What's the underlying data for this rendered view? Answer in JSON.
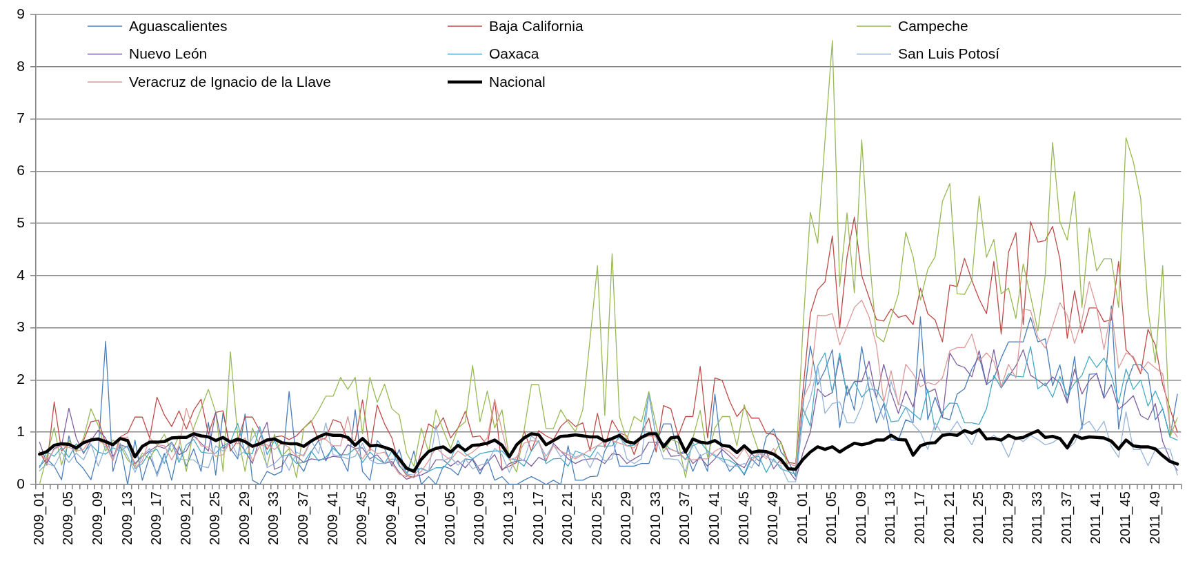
{
  "chart_data": {
    "type": "line",
    "grid": "y",
    "legend": "top",
    "marker": "none",
    "ylim": [
      0,
      9
    ],
    "yticks": [
      0,
      1,
      2,
      3,
      4,
      5,
      6,
      7,
      8,
      9
    ],
    "categories": [
      "2009_01",
      null,
      null,
      null,
      "2009_05",
      null,
      null,
      null,
      "2009_09",
      null,
      null,
      null,
      "2009_13",
      null,
      null,
      null,
      "2009_17",
      null,
      null,
      null,
      "2009_21",
      null,
      null,
      null,
      "2009_25",
      null,
      null,
      null,
      "2009_29",
      null,
      null,
      null,
      "2009_33",
      null,
      null,
      null,
      "2009_37",
      null,
      null,
      null,
      "2009_41",
      null,
      null,
      null,
      "2009_45",
      null,
      null,
      null,
      "2009_49",
      null,
      null,
      null,
      "2010_01",
      null,
      null,
      null,
      "2010_05",
      null,
      null,
      null,
      "2010_09",
      null,
      null,
      null,
      "2010_13",
      null,
      null,
      null,
      "2010_17",
      null,
      null,
      null,
      "2010_21",
      null,
      null,
      null,
      "2010_25",
      null,
      null,
      null,
      "2010_29",
      null,
      null,
      null,
      "2010_33",
      null,
      null,
      null,
      "2010_37",
      null,
      null,
      null,
      "2010_41",
      null,
      null,
      null,
      "2010_45",
      null,
      null,
      null,
      "2010_49",
      null,
      null,
      null,
      "2011_01",
      null,
      null,
      null,
      "2011_05",
      null,
      null,
      null,
      "2011_09",
      null,
      null,
      null,
      "2011_13",
      null,
      null,
      null,
      "2011_17",
      null,
      null,
      null,
      "2011_21",
      null,
      null,
      null,
      "2011_25",
      null,
      null,
      null,
      "2011_29",
      null,
      null,
      null,
      "2011_33",
      null,
      null,
      null,
      "2011_37",
      null,
      null,
      null,
      "2011_41",
      null,
      null,
      null,
      "2011_45",
      null,
      null,
      null,
      "2011_49",
      null,
      null,
      null
    ],
    "series": [
      {
        "name": "Aguascalientes",
        "color": "#4a7ebb",
        "values": [
          0.35,
          0.49,
          0.35,
          0.09,
          0.93,
          0.45,
          0.3,
          0.09,
          0.64,
          2.74,
          0.25,
          0.74,
          0.0,
          0.85,
          0.08,
          0.54,
          0.2,
          0.59,
          0.08,
          0.74,
          0.35,
          0.68,
          0.25,
          1.19,
          0.18,
          1.38,
          0.69,
          0.49,
          1.35,
          0.08,
          0.0,
          0.25,
          0.18,
          0.25,
          1.78,
          0.45,
          0.25,
          0.62,
          0.84,
          0.45,
          0.74,
          0.54,
          0.25,
          1.43,
          0.25,
          0.08,
          0.84,
          0.69,
          0.35,
          0.67,
          0.18,
          0.64,
          0.0,
          0.15,
          0.0,
          0.35,
          0.3,
          0.18,
          0.49,
          0.47,
          0.2,
          0.49,
          0.08,
          0.15,
          0.0,
          0.0,
          0.08,
          0.15,
          0.08,
          0.0,
          0.08,
          0.0,
          0.74,
          0.08,
          0.08,
          0.15,
          0.16,
          0.64,
          0.89,
          0.35,
          0.35,
          0.35,
          0.4,
          0.4,
          0.78,
          1.16,
          1.16,
          0.59,
          0.64,
          0.25,
          0.57,
          0.25,
          1.73,
          0.54,
          0.25,
          0.4,
          0.18,
          0.49,
          0.35,
          0.91,
          1.06,
          0.62,
          0.45,
          0.15,
          1.52,
          2.65,
          1.91,
          2.19,
          2.58,
          1.09,
          1.89,
          1.42,
          2.64,
          1.85,
          1.18,
          1.55,
          0.85,
          0.85,
          1.24,
          1.18,
          3.21,
          1.24,
          1.67,
          1.28,
          1.24,
          1.73,
          1.83,
          2.21,
          2.45,
          1.91,
          2.03,
          2.42,
          2.73,
          2.73,
          2.73,
          3.2,
          2.73,
          2.79,
          1.89,
          2.29,
          1.58,
          2.45,
          1.06,
          2.11,
          2.12,
          1.67,
          3.42,
          1.06,
          1.91,
          2.29,
          2.29,
          2.12,
          1.24,
          1.45,
          0.91,
          1.73
        ]
      },
      {
        "name": "Baja California",
        "color": "#be4b48",
        "values": [
          0.63,
          0.37,
          1.58,
          0.64,
          0.78,
          0.65,
          0.84,
          1.2,
          1.23,
          0.79,
          0.47,
          0.91,
          0.99,
          1.29,
          1.29,
          0.89,
          1.67,
          1.33,
          1.11,
          1.41,
          1.06,
          1.42,
          1.63,
          0.96,
          1.38,
          1.41,
          0.64,
          0.84,
          1.29,
          1.29,
          1.03,
          0.67,
          0.91,
          0.93,
          0.86,
          0.93,
          1.08,
          1.22,
          0.84,
          0.89,
          1.24,
          1.19,
          0.84,
          0.84,
          1.62,
          0.64,
          1.52,
          1.16,
          0.89,
          0.37,
          0.18,
          0.13,
          0.64,
          1.16,
          1.06,
          1.28,
          0.89,
          1.08,
          1.4,
          0.91,
          0.93,
          0.74,
          1.62,
          0.29,
          0.35,
          0.42,
          1.03,
          0.64,
          1.03,
          0.93,
          0.86,
          1.11,
          1.24,
          1.11,
          1.18,
          0.64,
          1.36,
          0.71,
          1.23,
          0.99,
          0.93,
          0.57,
          0.98,
          1.27,
          0.62,
          1.51,
          1.45,
          0.93,
          1.3,
          1.3,
          2.26,
          0.89,
          2.04,
          1.99,
          1.6,
          1.3,
          1.47,
          1.27,
          1.27,
          0.98,
          0.96,
          0.81,
          0.42,
          0.4,
          1.8,
          3.27,
          3.73,
          3.88,
          4.76,
          3.0,
          4.36,
          5.12,
          4.0,
          3.58,
          3.16,
          3.13,
          3.36,
          3.2,
          3.24,
          3.06,
          3.76,
          3.27,
          3.15,
          2.73,
          3.82,
          3.79,
          4.33,
          3.91,
          3.55,
          3.27,
          4.27,
          2.88,
          4.45,
          4.82,
          3.06,
          5.03,
          4.64,
          4.67,
          4.94,
          4.32,
          2.8,
          3.71,
          2.9,
          3.38,
          3.38,
          3.12,
          3.15,
          4.27,
          2.58,
          2.42,
          2.12,
          2.97,
          2.67,
          1.91,
          1.45,
          1.0
        ]
      },
      {
        "name": "Campeche",
        "color": "#98b954",
        "values": [
          0.0,
          0.54,
          1.09,
          0.37,
          0.85,
          0.62,
          0.89,
          1.45,
          1.13,
          0.64,
          0.85,
          0.74,
          0.47,
          0.35,
          0.6,
          0.49,
          0.74,
          0.96,
          0.62,
          0.93,
          0.25,
          1.08,
          1.45,
          1.82,
          1.38,
          0.25,
          2.54,
          0.93,
          0.25,
          1.08,
          0.74,
          0.35,
          0.96,
          0.54,
          0.69,
          0.13,
          1.08,
          1.2,
          1.42,
          1.69,
          1.69,
          2.05,
          1.82,
          2.05,
          0.97,
          2.05,
          1.57,
          1.92,
          1.45,
          1.33,
          0.6,
          0.35,
          1.08,
          0.62,
          1.43,
          1.03,
          0.69,
          1.08,
          1.2,
          2.28,
          1.2,
          1.79,
          1.08,
          1.43,
          0.49,
          0.24,
          1.03,
          1.91,
          1.91,
          1.07,
          1.07,
          1.43,
          1.2,
          1.01,
          1.43,
          2.79,
          4.19,
          1.32,
          4.42,
          1.3,
          0.86,
          1.3,
          1.2,
          1.78,
          1.13,
          0.62,
          0.86,
          0.81,
          0.13,
          0.89,
          1.42,
          0.52,
          1.08,
          1.3,
          1.3,
          0.74,
          1.53,
          1.03,
          0.62,
          0.6,
          0.59,
          0.81,
          0.3,
          0.3,
          3.0,
          5.21,
          4.62,
          6.6,
          8.5,
          3.79,
          5.2,
          3.67,
          6.6,
          4.42,
          2.84,
          2.73,
          3.2,
          3.65,
          4.83,
          4.36,
          3.53,
          4.12,
          4.36,
          5.42,
          5.76,
          3.65,
          3.64,
          3.91,
          5.52,
          4.35,
          4.69,
          3.65,
          3.76,
          3.18,
          4.22,
          3.61,
          2.94,
          4.0,
          6.55,
          5.03,
          4.68,
          5.61,
          3.39,
          4.91,
          4.09,
          4.32,
          4.32,
          3.39,
          6.64,
          6.18,
          5.48,
          3.36,
          2.33,
          4.19,
          0.91,
          1.28
        ]
      },
      {
        "name": "Nuevo León",
        "color": "#7d60a0",
        "values": [
          0.81,
          0.4,
          0.69,
          0.74,
          1.46,
          0.89,
          0.59,
          0.84,
          1.04,
          0.89,
          0.54,
          0.76,
          0.71,
          0.4,
          0.54,
          0.64,
          0.74,
          0.69,
          0.81,
          0.57,
          0.64,
          0.93,
          0.79,
          0.64,
          1.38,
          0.69,
          0.79,
          0.84,
          0.64,
          0.4,
          0.89,
          1.19,
          0.29,
          0.35,
          0.59,
          0.54,
          0.42,
          0.49,
          0.47,
          0.49,
          0.54,
          0.52,
          0.76,
          0.69,
          0.7,
          0.49,
          0.57,
          0.4,
          0.44,
          0.23,
          0.1,
          0.15,
          0.18,
          0.25,
          0.47,
          0.47,
          0.35,
          0.45,
          0.32,
          0.49,
          0.27,
          0.42,
          0.57,
          0.27,
          0.4,
          0.45,
          0.47,
          0.35,
          0.52,
          0.45,
          0.79,
          0.64,
          0.49,
          0.4,
          0.47,
          0.49,
          0.49,
          0.4,
          0.59,
          0.57,
          0.4,
          0.49,
          0.57,
          0.81,
          0.81,
          0.79,
          0.54,
          0.55,
          0.62,
          0.4,
          0.52,
          0.35,
          0.49,
          0.67,
          0.54,
          0.4,
          0.32,
          0.59,
          0.45,
          0.62,
          0.3,
          0.49,
          0.27,
          0.08,
          0.61,
          1.0,
          1.83,
          1.68,
          1.76,
          2.44,
          1.73,
          1.97,
          1.97,
          2.36,
          1.65,
          2.3,
          1.76,
          1.36,
          1.79,
          1.48,
          2.21,
          1.76,
          1.83,
          1.28,
          2.52,
          2.29,
          2.24,
          2.06,
          2.56,
          1.91,
          2.58,
          1.85,
          2.06,
          2.27,
          2.58,
          2.09,
          2.0,
          1.89,
          2.06,
          1.94,
          1.56,
          2.21,
          1.73,
          1.99,
          2.13,
          1.65,
          1.91,
          1.44,
          1.56,
          1.7,
          1.32,
          1.24,
          1.55,
          0.82,
          0.48,
          0.27
        ]
      },
      {
        "name": "Oaxaca",
        "color": "#46aac5",
        "values": [
          0.32,
          0.62,
          0.54,
          0.71,
          0.52,
          0.78,
          0.62,
          0.76,
          0.62,
          0.58,
          0.7,
          0.64,
          0.74,
          0.3,
          0.4,
          0.62,
          0.67,
          0.4,
          0.81,
          0.42,
          0.76,
          0.86,
          0.62,
          0.6,
          0.6,
          0.74,
          0.81,
          1.17,
          0.59,
          0.59,
          1.11,
          0.57,
          0.84,
          0.54,
          0.57,
          0.4,
          0.42,
          0.64,
          0.45,
          0.52,
          0.69,
          0.57,
          0.57,
          0.69,
          0.42,
          0.62,
          0.49,
          0.4,
          0.64,
          0.35,
          0.23,
          0.3,
          0.3,
          0.25,
          0.32,
          0.32,
          0.47,
          0.84,
          0.59,
          0.49,
          0.59,
          0.62,
          0.64,
          0.64,
          0.49,
          0.47,
          0.35,
          0.64,
          0.84,
          0.4,
          0.49,
          0.5,
          0.35,
          0.64,
          0.59,
          0.52,
          0.74,
          0.73,
          0.74,
          0.9,
          0.74,
          0.75,
          0.93,
          1.73,
          0.91,
          0.79,
          0.67,
          0.62,
          0.47,
          0.74,
          0.81,
          0.64,
          0.54,
          0.49,
          0.46,
          0.37,
          0.2,
          0.52,
          0.54,
          0.23,
          0.49,
          0.3,
          0.25,
          0.19,
          1.45,
          1.12,
          2.27,
          2.52,
          1.76,
          2.52,
          1.7,
          1.97,
          1.67,
          1.83,
          1.81,
          1.58,
          1.2,
          1.22,
          1.48,
          1.36,
          1.24,
          1.82,
          1.04,
          1.39,
          1.56,
          1.55,
          1.18,
          1.18,
          1.15,
          1.45,
          2.09,
          1.85,
          2.12,
          2.07,
          2.06,
          2.64,
          1.83,
          1.94,
          1.67,
          2.07,
          1.71,
          1.94,
          2.09,
          2.45,
          2.24,
          2.42,
          2.09,
          1.56,
          2.21,
          1.82,
          2.0,
          1.5,
          1.79,
          1.45,
          0.91,
          0.85
        ]
      },
      {
        "name": "San Luis Potosí",
        "color": "#95b3d7",
        "values": [
          0.26,
          0.4,
          0.35,
          0.62,
          0.42,
          0.6,
          0.47,
          0.78,
          0.35,
          0.74,
          0.49,
          0.79,
          0.54,
          0.23,
          0.54,
          0.69,
          0.15,
          0.54,
          0.79,
          0.49,
          0.47,
          0.47,
          0.35,
          0.32,
          0.74,
          0.64,
          0.84,
          0.54,
          0.64,
          0.89,
          1.08,
          0.32,
          0.4,
          0.54,
          0.27,
          0.62,
          0.54,
          0.84,
          0.59,
          1.18,
          0.57,
          0.54,
          0.49,
          0.54,
          0.79,
          0.47,
          0.4,
          0.4,
          0.49,
          0.45,
          0.2,
          0.18,
          0.32,
          0.25,
          1.13,
          0.45,
          0.52,
          0.37,
          0.49,
          0.3,
          0.37,
          0.4,
          0.69,
          0.57,
          0.23,
          0.54,
          0.45,
          0.93,
          0.81,
          0.54,
          0.76,
          0.53,
          0.64,
          0.52,
          0.59,
          0.32,
          0.62,
          0.45,
          0.49,
          1.03,
          0.49,
          0.4,
          0.49,
          1.72,
          0.89,
          0.49,
          0.49,
          0.47,
          0.25,
          0.81,
          0.54,
          0.62,
          0.57,
          0.45,
          0.35,
          0.35,
          0.4,
          0.32,
          0.59,
          0.54,
          0.45,
          0.35,
          0.05,
          0.05,
          1.27,
          1.64,
          2.27,
          1.36,
          1.55,
          1.58,
          1.18,
          1.18,
          1.5,
          2.06,
          1.64,
          1.24,
          1.97,
          1.55,
          1.48,
          1.15,
          1.0,
          0.67,
          1.18,
          0.96,
          1.0,
          1.21,
          0.97,
          0.76,
          1.09,
          0.85,
          0.94,
          0.82,
          0.52,
          0.91,
          0.82,
          0.94,
          0.86,
          0.76,
          0.8,
          0.9,
          0.67,
          0.8,
          1.12,
          1.21,
          1.0,
          1.21,
          0.73,
          0.52,
          1.39,
          0.67,
          0.67,
          0.36,
          0.67,
          0.7,
          0.67,
          0.18
        ]
      },
      {
        "name": "Veracruz de Ignacio de la Llave",
        "color": "#dd9997",
        "values": [
          0.62,
          0.45,
          0.67,
          0.75,
          0.71,
          0.64,
          0.67,
          0.89,
          0.84,
          0.76,
          0.45,
          0.89,
          0.91,
          0.32,
          0.45,
          0.89,
          0.76,
          0.74,
          0.47,
          0.74,
          1.46,
          1.01,
          0.74,
          0.71,
          0.54,
          0.57,
          0.84,
          0.78,
          0.89,
          0.45,
          0.74,
          0.76,
          0.67,
          0.79,
          0.71,
          0.54,
          0.57,
          0.86,
          0.89,
          0.86,
          0.74,
          0.74,
          1.3,
          0.67,
          0.49,
          0.69,
          0.59,
          0.62,
          0.4,
          0.2,
          0.15,
          0.13,
          0.25,
          0.45,
          0.71,
          0.57,
          0.47,
          0.64,
          0.54,
          0.62,
          0.74,
          0.89,
          1.63,
          1.03,
          0.47,
          0.52,
          0.79,
          0.84,
          0.81,
          0.47,
          0.74,
          0.64,
          0.57,
          0.49,
          0.57,
          0.67,
          0.74,
          0.84,
          0.84,
          0.79,
          0.74,
          0.7,
          0.89,
          0.93,
          0.91,
          0.71,
          0.67,
          0.62,
          0.49,
          0.47,
          0.49,
          0.49,
          0.64,
          0.71,
          0.62,
          0.49,
          0.69,
          0.45,
          0.62,
          0.49,
          0.69,
          0.4,
          0.4,
          0.35,
          1.64,
          1.94,
          3.24,
          3.23,
          3.27,
          2.67,
          3.03,
          3.39,
          3.53,
          3.21,
          2.67,
          1.58,
          2.18,
          1.52,
          2.3,
          2.12,
          1.87,
          1.95,
          1.91,
          2.04,
          2.56,
          2.62,
          2.62,
          2.88,
          2.36,
          2.52,
          2.36,
          1.87,
          2.3,
          2.04,
          3.36,
          3.33,
          2.82,
          2.61,
          3.03,
          3.48,
          3.24,
          2.7,
          3.15,
          3.88,
          3.39,
          2.58,
          3.36,
          2.23,
          2.52,
          2.45,
          2.15,
          2.35,
          2.23,
          2.12,
          1.12,
          0.91
        ]
      },
      {
        "name": "Nacional",
        "color": "#000000",
        "values": [
          0.58,
          0.63,
          0.75,
          0.78,
          0.77,
          0.7,
          0.8,
          0.85,
          0.87,
          0.82,
          0.76,
          0.88,
          0.84,
          0.53,
          0.73,
          0.81,
          0.81,
          0.82,
          0.89,
          0.9,
          0.9,
          0.97,
          0.93,
          0.91,
          0.84,
          0.9,
          0.81,
          0.87,
          0.82,
          0.73,
          0.78,
          0.85,
          0.87,
          0.8,
          0.78,
          0.78,
          0.73,
          0.83,
          0.91,
          0.97,
          0.94,
          0.94,
          0.9,
          0.75,
          0.88,
          0.74,
          0.75,
          0.71,
          0.66,
          0.49,
          0.31,
          0.25,
          0.48,
          0.63,
          0.69,
          0.72,
          0.62,
          0.75,
          0.65,
          0.75,
          0.76,
          0.79,
          0.85,
          0.75,
          0.53,
          0.76,
          0.89,
          0.97,
          0.95,
          0.76,
          0.84,
          0.92,
          0.93,
          0.95,
          0.93,
          0.91,
          0.91,
          0.83,
          0.88,
          0.94,
          0.82,
          0.79,
          0.9,
          0.97,
          0.97,
          0.72,
          0.89,
          0.91,
          0.62,
          0.87,
          0.81,
          0.79,
          0.84,
          0.75,
          0.73,
          0.61,
          0.74,
          0.61,
          0.64,
          0.63,
          0.58,
          0.48,
          0.3,
          0.29,
          0.48,
          0.62,
          0.72,
          0.67,
          0.72,
          0.62,
          0.71,
          0.79,
          0.76,
          0.79,
          0.85,
          0.85,
          0.94,
          0.86,
          0.85,
          0.56,
          0.74,
          0.79,
          0.8,
          0.94,
          0.96,
          0.94,
          1.03,
          0.98,
          1.05,
          0.87,
          0.88,
          0.85,
          0.94,
          0.88,
          0.9,
          0.97,
          1.03,
          0.9,
          0.92,
          0.88,
          0.7,
          0.94,
          0.88,
          0.91,
          0.9,
          0.89,
          0.83,
          0.68,
          0.85,
          0.74,
          0.72,
          0.72,
          0.68,
          0.55,
          0.44,
          0.39
        ]
      }
    ]
  }
}
